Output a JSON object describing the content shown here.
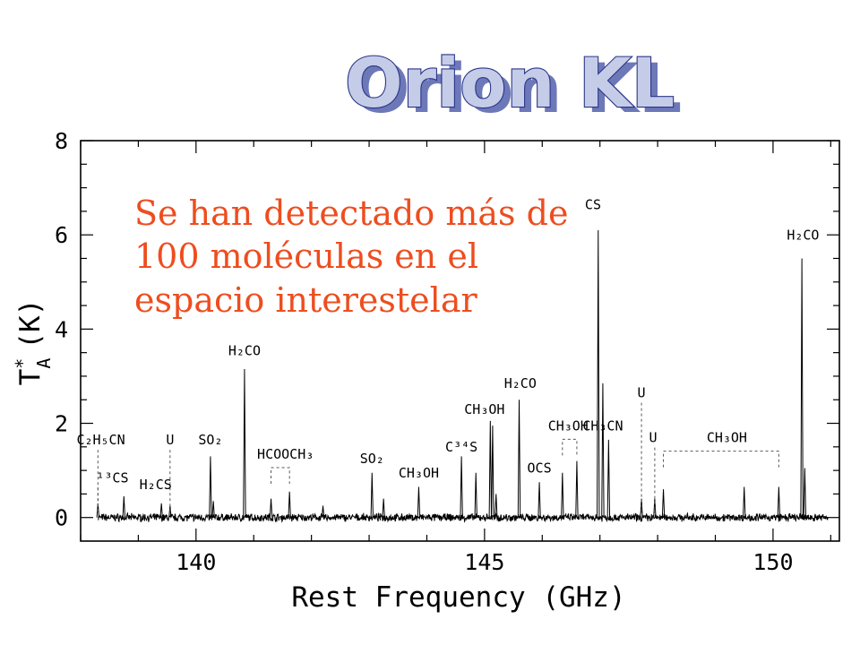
{
  "title": "Orion KL",
  "callout": [
    "Se han detectado más de",
    "100 moléculas en el",
    "espacio interestelar"
  ],
  "chart_data": {
    "type": "line",
    "xlabel": "Rest Frequency (GHz)",
    "ylabel_main": "T",
    "ylabel_sup": "*",
    "ylabel_sub": "A",
    "ylabel_unit": "(K)",
    "xlim": [
      138.0,
      151.15
    ],
    "ylim": [
      -0.5,
      8.0
    ],
    "x_ticks": [
      140,
      145,
      150
    ],
    "y_ticks": [
      0,
      2,
      4,
      6,
      8
    ],
    "x_tick_labels": [
      "140",
      "145",
      "150"
    ],
    "y_tick_labels": [
      "0",
      "2",
      "4",
      "6",
      "8"
    ],
    "grid": false,
    "peaks": [
      {
        "x": 138.3,
        "y": 0.3
      },
      {
        "x": 138.75,
        "y": 0.45
      },
      {
        "x": 139.4,
        "y": 0.3
      },
      {
        "x": 139.55,
        "y": 0.25
      },
      {
        "x": 140.25,
        "y": 1.3
      },
      {
        "x": 140.3,
        "y": 0.35
      },
      {
        "x": 140.84,
        "y": 3.15
      },
      {
        "x": 141.3,
        "y": 0.4
      },
      {
        "x": 141.62,
        "y": 0.55
      },
      {
        "x": 142.2,
        "y": 0.25
      },
      {
        "x": 143.05,
        "y": 0.95
      },
      {
        "x": 143.25,
        "y": 0.4
      },
      {
        "x": 143.86,
        "y": 0.65
      },
      {
        "x": 144.6,
        "y": 1.3
      },
      {
        "x": 144.85,
        "y": 0.95
      },
      {
        "x": 145.1,
        "y": 2.05
      },
      {
        "x": 145.14,
        "y": 1.95
      },
      {
        "x": 145.2,
        "y": 0.5
      },
      {
        "x": 145.6,
        "y": 2.5
      },
      {
        "x": 145.95,
        "y": 0.75
      },
      {
        "x": 146.35,
        "y": 0.95
      },
      {
        "x": 146.6,
        "y": 1.2
      },
      {
        "x": 146.97,
        "y": 6.1
      },
      {
        "x": 147.05,
        "y": 2.85
      },
      {
        "x": 147.15,
        "y": 1.65
      },
      {
        "x": 147.72,
        "y": 0.4
      },
      {
        "x": 147.95,
        "y": 0.4
      },
      {
        "x": 148.1,
        "y": 0.6
      },
      {
        "x": 149.5,
        "y": 0.65
      },
      {
        "x": 150.1,
        "y": 0.65
      },
      {
        "x": 150.5,
        "y": 5.5
      },
      {
        "x": 150.55,
        "y": 1.05
      }
    ],
    "labels": [
      {
        "text": "CS",
        "x": 146.88,
        "y": 6.55,
        "line_x": 146.97
      },
      {
        "text": "H₂CO",
        "x": 150.52,
        "y": 5.9,
        "line_x": 150.5
      },
      {
        "text": "H₂CO",
        "x": 140.84,
        "y": 3.45,
        "line_x": 140.84
      },
      {
        "text": "H₂CO",
        "x": 145.62,
        "y": 2.75,
        "line_x": 145.6
      },
      {
        "text": "CH₃OH",
        "x": 145.0,
        "y": 2.2,
        "line_x": 145.1
      },
      {
        "text": "U",
        "x": 147.72,
        "y": 2.55,
        "line_x": 147.72,
        "dotted": true
      },
      {
        "text": "CH₃CN",
        "x": 147.05,
        "y": 1.85,
        "line_x": 147.15
      },
      {
        "text": "CH₃OH",
        "x": 146.45,
        "y": 1.85,
        "bracket": [
          146.35,
          146.6
        ]
      },
      {
        "text": "U",
        "x": 147.92,
        "y": 1.6,
        "line_x": 147.95,
        "dotted": true
      },
      {
        "text": "CH₃OH",
        "x": 149.2,
        "y": 1.6,
        "bracket": [
          148.1,
          150.1
        ]
      },
      {
        "text": "C³⁴S",
        "x": 144.6,
        "y": 1.4,
        "line_x": 144.6
      },
      {
        "text": "OCS",
        "x": 145.95,
        "y": 0.95,
        "line_x": 145.95
      },
      {
        "text": "CH₃OH",
        "x": 143.86,
        "y": 0.85,
        "line_x": 143.86
      },
      {
        "text": "SO₂",
        "x": 143.05,
        "y": 1.15,
        "line_x": 143.05
      },
      {
        "text": "HCOOCH₃",
        "x": 141.55,
        "y": 1.25,
        "bracket": [
          141.3,
          141.62
        ]
      },
      {
        "text": "SO₂",
        "x": 140.25,
        "y": 1.55,
        "line_x": 140.25
      },
      {
        "text": "C₂H₅CN",
        "x": 138.35,
        "y": 1.55,
        "line_x": 138.3,
        "dotted": true
      },
      {
        "text": "U",
        "x": 139.55,
        "y": 1.55,
        "line_x": 139.55,
        "dotted": true
      },
      {
        "text": "¹³CS",
        "x": 138.55,
        "y": 0.75,
        "line_x": 138.3,
        "dotted": true
      },
      {
        "text": "H₂CS",
        "x": 139.3,
        "y": 0.6,
        "line_x": 139.4
      }
    ]
  }
}
